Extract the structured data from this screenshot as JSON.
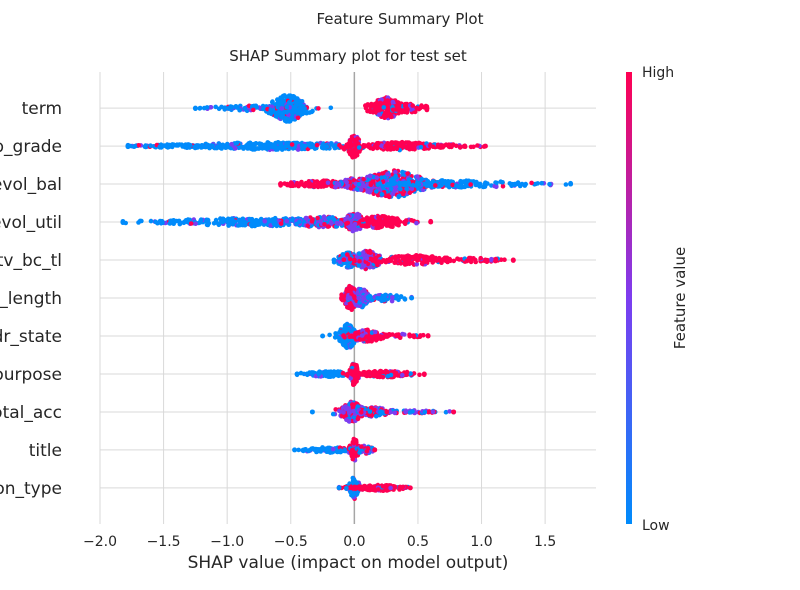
{
  "chart_data": {
    "type": "scatter",
    "suptitle": "Feature Summary Plot",
    "title": "SHAP Summary plot for test set",
    "xlabel": "SHAP value (impact on model output)",
    "xlim": [
      -2.0,
      1.9
    ],
    "xticks": [
      -2.0,
      -1.5,
      -1.0,
      -0.5,
      0.0,
      0.5,
      1.0,
      1.5
    ],
    "xtick_labels": [
      "−2.0",
      "−1.5",
      "−1.0",
      "−0.5",
      "0.0",
      "0.5",
      "1.0",
      "1.5"
    ],
    "grid": true,
    "colorbar": {
      "label": "Feature value",
      "high": "High",
      "low": "Low",
      "color_high": "#ff0052",
      "color_mid": "#7d3df0",
      "color_low": "#008bfb"
    },
    "features": [
      {
        "label": "term",
        "min": -1.25,
        "max": 0.57,
        "clusters": [
          {
            "c": -0.52,
            "w": 0.08,
            "h": 1.0,
            "n": 320,
            "f": "low"
          },
          {
            "c": -0.8,
            "w": 0.22,
            "h": 0.18,
            "n": 90,
            "f": "low"
          },
          {
            "c": 0.25,
            "w": 0.07,
            "h": 0.8,
            "n": 180,
            "f": "high"
          },
          {
            "c": 0.42,
            "w": 0.1,
            "h": 0.35,
            "n": 70,
            "f": "high"
          }
        ]
      },
      {
        "label": "sub_grade",
        "display": "p_grade",
        "min": -1.78,
        "max": 1.03,
        "clusters": [
          {
            "c": -0.6,
            "w": 0.45,
            "h": 0.28,
            "n": 320,
            "f": "low"
          },
          {
            "c": -1.4,
            "w": 0.25,
            "h": 0.12,
            "n": 90,
            "f": "low"
          },
          {
            "c": 0.0,
            "w": 0.03,
            "h": 0.9,
            "n": 80,
            "f": "high"
          },
          {
            "c": 0.35,
            "w": 0.2,
            "h": 0.3,
            "n": 160,
            "f": "high"
          },
          {
            "c": 0.75,
            "w": 0.12,
            "h": 0.12,
            "n": 40,
            "f": "high"
          }
        ]
      },
      {
        "label": "revol_bal",
        "display": "evol_bal",
        "min": -0.58,
        "max": 1.7,
        "clusters": [
          {
            "c": -0.25,
            "w": 0.18,
            "h": 0.25,
            "n": 140,
            "f": "high"
          },
          {
            "c": 0.0,
            "w": 0.07,
            "h": 0.45,
            "n": 90,
            "f": "mid"
          },
          {
            "c": 0.3,
            "w": 0.15,
            "h": 1.0,
            "n": 340,
            "f": "mix"
          },
          {
            "c": 0.85,
            "w": 0.35,
            "h": 0.25,
            "n": 160,
            "f": "low"
          }
        ]
      },
      {
        "label": "revol_util",
        "display": "evol_util",
        "min": -1.82,
        "max": 0.6,
        "clusters": [
          {
            "c": -0.75,
            "w": 0.45,
            "h": 0.3,
            "n": 300,
            "f": "low"
          },
          {
            "c": -0.25,
            "w": 0.15,
            "h": 0.4,
            "n": 140,
            "f": "mix"
          },
          {
            "c": 0.0,
            "w": 0.05,
            "h": 0.7,
            "n": 120,
            "f": "mid"
          },
          {
            "c": 0.2,
            "w": 0.12,
            "h": 0.45,
            "n": 140,
            "f": "high"
          }
        ]
      },
      {
        "label": "mort_acc_to_tot_bc_tl",
        "display": "tv_bc_tl",
        "min": -0.16,
        "max": 1.25,
        "clusters": [
          {
            "c": -0.05,
            "w": 0.05,
            "h": 0.55,
            "n": 90,
            "f": "low"
          },
          {
            "c": 0.1,
            "w": 0.06,
            "h": 0.7,
            "n": 160,
            "f": "mid"
          },
          {
            "c": 0.45,
            "w": 0.18,
            "h": 0.35,
            "n": 140,
            "f": "high"
          },
          {
            "c": 0.95,
            "w": 0.15,
            "h": 0.15,
            "n": 50,
            "f": "high"
          }
        ]
      },
      {
        "label": "emp_length",
        "display": "p_length",
        "min": -0.1,
        "max": 0.45,
        "clusters": [
          {
            "c": -0.03,
            "w": 0.03,
            "h": 0.9,
            "n": 140,
            "f": "high"
          },
          {
            "c": 0.05,
            "w": 0.04,
            "h": 0.7,
            "n": 140,
            "f": "mid"
          },
          {
            "c": 0.25,
            "w": 0.1,
            "h": 0.25,
            "n": 60,
            "f": "low"
          }
        ]
      },
      {
        "label": "addr_state",
        "display": "dr_state",
        "min": -0.25,
        "max": 0.58,
        "clusters": [
          {
            "c": -0.05,
            "w": 0.04,
            "h": 0.9,
            "n": 160,
            "f": "low"
          },
          {
            "c": 0.1,
            "w": 0.07,
            "h": 0.45,
            "n": 110,
            "f": "high"
          },
          {
            "c": 0.35,
            "w": 0.12,
            "h": 0.15,
            "n": 40,
            "f": "high"
          }
        ]
      },
      {
        "label": "purpose",
        "display": "ourpose",
        "min": -0.45,
        "max": 0.55,
        "clusters": [
          {
            "c": -0.2,
            "w": 0.12,
            "h": 0.2,
            "n": 120,
            "f": "low"
          },
          {
            "c": 0.0,
            "w": 0.02,
            "h": 0.85,
            "n": 60,
            "f": "high"
          },
          {
            "c": 0.25,
            "w": 0.13,
            "h": 0.25,
            "n": 140,
            "f": "high"
          }
        ]
      },
      {
        "label": "total_acc",
        "display": "otal_acc",
        "min": -0.33,
        "max": 0.78,
        "clusters": [
          {
            "c": -0.02,
            "w": 0.05,
            "h": 0.75,
            "n": 160,
            "f": "mix"
          },
          {
            "c": 0.15,
            "w": 0.08,
            "h": 0.35,
            "n": 110,
            "f": "mix"
          },
          {
            "c": 0.45,
            "w": 0.15,
            "h": 0.12,
            "n": 50,
            "f": "mix"
          }
        ]
      },
      {
        "label": "title",
        "min": -0.47,
        "max": 0.16,
        "clusters": [
          {
            "c": -0.2,
            "w": 0.12,
            "h": 0.2,
            "n": 110,
            "f": "low"
          },
          {
            "c": 0.0,
            "w": 0.02,
            "h": 0.85,
            "n": 60,
            "f": "high"
          },
          {
            "c": 0.08,
            "w": 0.04,
            "h": 0.3,
            "n": 40,
            "f": "mix"
          }
        ]
      },
      {
        "label": "application_type",
        "display": "on_type",
        "min": -0.12,
        "max": 0.44,
        "clusters": [
          {
            "c": 0.0,
            "w": 0.02,
            "h": 0.9,
            "n": 70,
            "f": "low"
          },
          {
            "c": 0.2,
            "w": 0.11,
            "h": 0.22,
            "n": 140,
            "f": "high"
          }
        ]
      }
    ]
  }
}
